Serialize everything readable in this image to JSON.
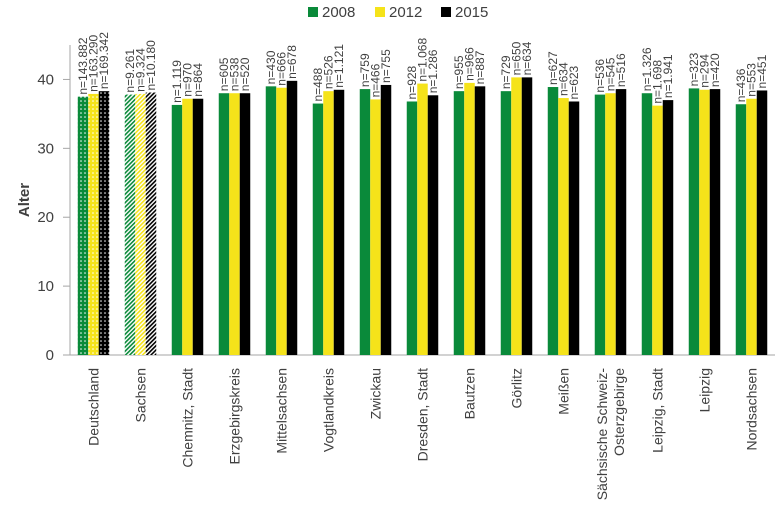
{
  "chart_data": {
    "type": "bar",
    "ylabel": "Alter",
    "ylim": [
      0,
      45
    ],
    "yticks": [
      0,
      10,
      20,
      30,
      40
    ],
    "grid": false,
    "legend_position": "top-center",
    "categories": [
      [
        "Deutschland"
      ],
      [
        "Sachsen"
      ],
      [
        "Chemnitz, Stadt"
      ],
      [
        "Erzgebirgskreis"
      ],
      [
        "Mittelsachsen"
      ],
      [
        "Vogtlandkreis"
      ],
      [
        "Zwickau"
      ],
      [
        "Dresden, Stadt"
      ],
      [
        "Bautzen"
      ],
      [
        "Görlitz"
      ],
      [
        "Meißen"
      ],
      [
        "Sächsische Schweiz-",
        "Osterzgebirge"
      ],
      [
        "Leipzig, Stadt"
      ],
      [
        "Leipzig"
      ],
      [
        "Nordsachsen"
      ]
    ],
    "series": [
      {
        "name": "2008",
        "color": "#0a8a3a",
        "values": [
          37.5,
          37.8,
          36.3,
          38.0,
          39.0,
          36.5,
          38.6,
          36.8,
          38.3,
          38.3,
          38.9,
          37.8,
          38.0,
          38.7,
          36.4
        ],
        "n_labels": [
          "n=143.882",
          "n=9.261",
          "n=1.119",
          "n=605",
          "n=430",
          "n=488",
          "n=759",
          "n=928",
          "n=955",
          "n=729",
          "n=627",
          "n=536",
          "n=1.326",
          "n=323",
          "n=436"
        ]
      },
      {
        "name": "2012",
        "color": "#f5e31a",
        "values": [
          37.9,
          37.9,
          37.2,
          38.0,
          38.8,
          38.3,
          37.1,
          39.4,
          39.5,
          40.3,
          37.3,
          38.0,
          36.2,
          38.5,
          37.2
        ],
        "n_labels": [
          "n=163.290",
          "n=9.324",
          "n=970",
          "n=538",
          "n=666",
          "n=526",
          "n=466",
          "n=1.068",
          "n=966",
          "n=650",
          "n=634",
          "n=545",
          "n=1.698",
          "n=294",
          "n=553"
        ]
      },
      {
        "name": "2015",
        "color": "#000000",
        "values": [
          38.3,
          38.1,
          37.2,
          38.0,
          39.8,
          38.5,
          39.2,
          37.7,
          39.0,
          40.3,
          36.8,
          38.6,
          37.0,
          38.6,
          38.4
        ],
        "n_labels": [
          "n=169.342",
          "n=10.180",
          "n=864",
          "n=520",
          "n=678",
          "n=1.121",
          "n=755",
          "n=1.286",
          "n=887",
          "n=634",
          "n=623",
          "n=516",
          "n=1.941",
          "n=420",
          "n=451"
        ]
      }
    ],
    "patterned_categories": [
      "Deutschland",
      "Sachsen"
    ]
  }
}
